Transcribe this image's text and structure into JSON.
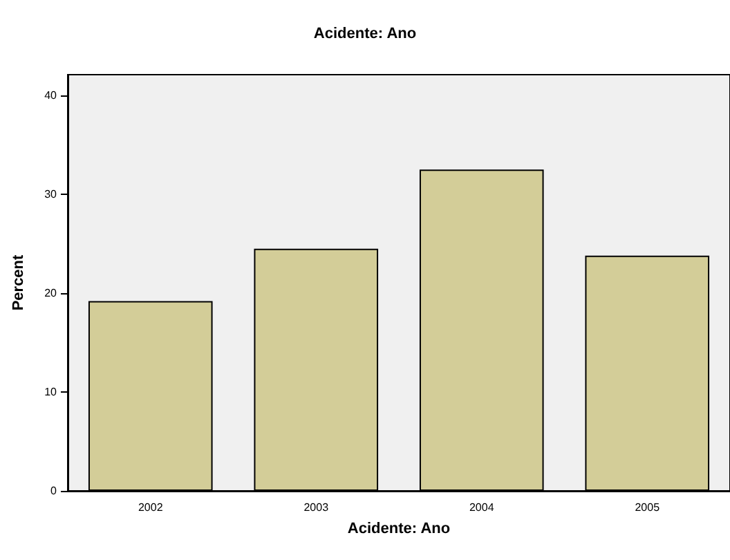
{
  "chart_data": {
    "type": "bar",
    "title": "Acidente: Ano",
    "xlabel": "Acidente: Ano",
    "ylabel": "Percent",
    "categories": [
      "2002",
      "2003",
      "2004",
      "2005"
    ],
    "values": [
      19.2,
      24.5,
      32.5,
      23.8
    ],
    "color": "#d3cd98",
    "ylim": [
      0,
      42.1
    ],
    "yticks": [
      0,
      10,
      20,
      30,
      40
    ],
    "grid": false
  }
}
